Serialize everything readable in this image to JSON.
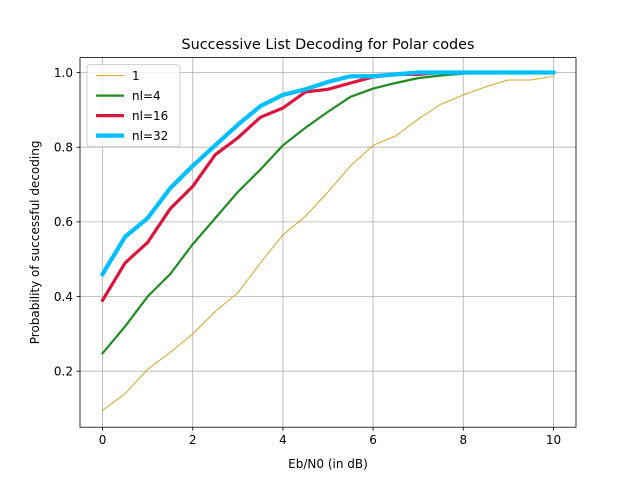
{
  "chart_data": {
    "type": "line",
    "title": "Successive List Decoding for Polar codes",
    "xlabel": "Eb/N0 (in dB)",
    "ylabel": "Probability of successful decoding",
    "xlim": [
      -0.5,
      10.5
    ],
    "ylim": [
      0.05,
      1.04
    ],
    "xticks": [
      0,
      2,
      4,
      6,
      8,
      10
    ],
    "yticks": [
      0.2,
      0.4,
      0.6,
      0.8,
      1.0
    ],
    "ytick_labels": [
      "0.2",
      "0.4",
      "0.6",
      "0.8",
      "1.0"
    ],
    "grid": true,
    "legend_position": "top-left",
    "x": [
      0,
      0.5,
      1,
      1.5,
      2,
      2.5,
      3,
      3.5,
      4,
      4.5,
      5,
      5.5,
      6,
      6.5,
      7,
      7.5,
      8,
      8.5,
      9,
      9.5,
      10
    ],
    "series": [
      {
        "name": "1",
        "color": "#daa520",
        "width": 1,
        "values": [
          0.095,
          0.14,
          0.205,
          0.25,
          0.3,
          0.36,
          0.41,
          0.49,
          0.565,
          0.615,
          0.68,
          0.75,
          0.805,
          0.83,
          0.875,
          0.915,
          0.94,
          0.962,
          0.98,
          0.98,
          0.99
        ]
      },
      {
        "name": "nl=4",
        "color": "#228b22",
        "width": 2.2,
        "values": [
          0.248,
          0.32,
          0.4,
          0.46,
          0.54,
          0.61,
          0.68,
          0.74,
          0.805,
          0.852,
          0.895,
          0.935,
          0.957,
          0.972,
          0.985,
          0.992,
          0.997,
          1.0,
          1.0,
          1.0,
          1.0
        ]
      },
      {
        "name": "nl=16",
        "color": "#dc143c",
        "width": 3.2,
        "values": [
          0.39,
          0.49,
          0.545,
          0.635,
          0.695,
          0.78,
          0.825,
          0.88,
          0.905,
          0.948,
          0.955,
          0.972,
          0.988,
          0.995,
          0.995,
          1.0,
          1.0,
          1.0,
          1.0,
          1.0,
          1.0
        ]
      },
      {
        "name": "nl=32",
        "color": "#00bfff",
        "width": 4.2,
        "values": [
          0.46,
          0.56,
          0.61,
          0.69,
          0.75,
          0.805,
          0.86,
          0.91,
          0.94,
          0.955,
          0.975,
          0.99,
          0.99,
          0.995,
          1.0,
          1.0,
          1.0,
          1.0,
          1.0,
          1.0,
          1.0
        ]
      }
    ]
  }
}
